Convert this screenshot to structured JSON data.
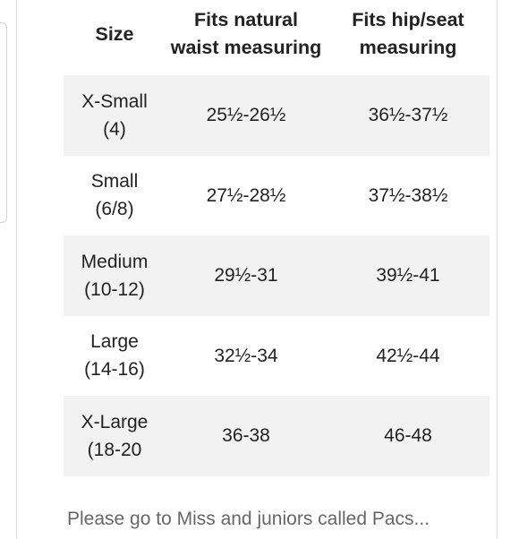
{
  "table": {
    "headers": [
      "Size",
      "Fits natural\nwaist measuring",
      "Fits hip/seat\nmeasuring"
    ],
    "rows": [
      {
        "size": "X-Small\n(4)",
        "waist": "25½-26½",
        "hip": "36½-37½"
      },
      {
        "size": "Small\n(6/8)",
        "waist": "27½-28½",
        "hip": "37½-38½"
      },
      {
        "size": "Medium\n(10-12)",
        "waist": "29½-31",
        "hip": "39½-41"
      },
      {
        "size": "Large\n(14-16)",
        "waist": "32½-34",
        "hip": "42½-44"
      },
      {
        "size": "X-Large\n(18-20",
        "waist": "36-38",
        "hip": "46-48"
      }
    ]
  },
  "footnote": "Please go to Miss and juniors called Pacs..."
}
